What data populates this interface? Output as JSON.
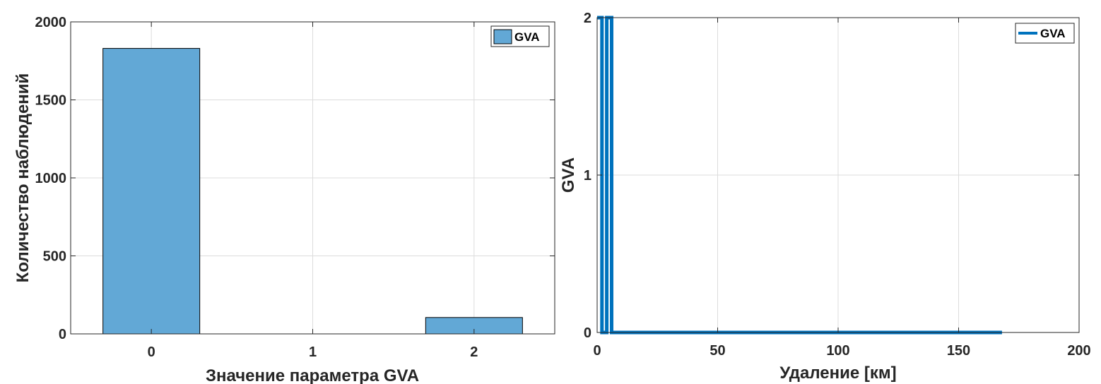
{
  "chart_data": [
    {
      "type": "bar",
      "categories": [
        "0",
        "1",
        "2"
      ],
      "series": [
        {
          "name": "GVA",
          "values": [
            1830,
            0,
            105
          ]
        }
      ],
      "title": "",
      "xlabel": "Значение параметра GVA",
      "ylabel": "Количество наблюдений",
      "ylim": [
        0,
        2000
      ],
      "yticks": [
        "0",
        "500",
        "1000",
        "1500",
        "2000"
      ],
      "grid": true,
      "legend": "top-right",
      "colors": {
        "bar": "#62a8d6",
        "edge": "#000000"
      }
    },
    {
      "type": "line",
      "series": [
        {
          "name": "GVA",
          "x": [
            0,
            2,
            2,
            4,
            4,
            6,
            6,
            168
          ],
          "y": [
            2,
            2,
            0,
            0,
            2,
            2,
            0,
            0
          ]
        }
      ],
      "title": "",
      "xlabel": "Удаление [км]",
      "ylabel": "GVA",
      "xlim": [
        0,
        200
      ],
      "ylim": [
        0,
        2
      ],
      "xticks": [
        "0",
        "50",
        "100",
        "150",
        "200"
      ],
      "yticks": [
        "0",
        "1",
        "2"
      ],
      "grid": true,
      "legend": "top-right",
      "colors": {
        "line": "#0072bd"
      }
    }
  ]
}
